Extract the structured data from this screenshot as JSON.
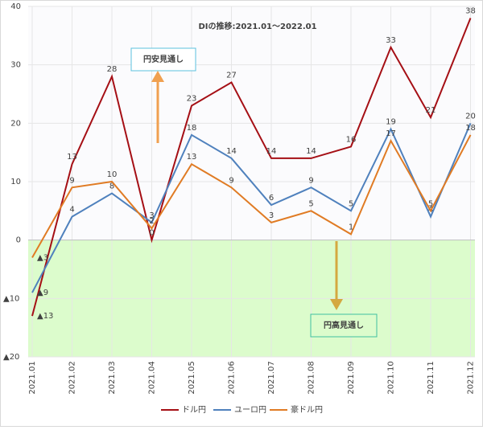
{
  "chart_data": {
    "type": "line",
    "title": "DIの推移:2021.01～2022.01",
    "categories": [
      "2021.01",
      "2021.02",
      "2021.03",
      "2021.04",
      "2021.05",
      "2021.06",
      "2021.07",
      "2021.08",
      "2021.09",
      "2021.10",
      "2021.11",
      "2021.12"
    ],
    "series": [
      {
        "name": "ドル円",
        "color": "#a50f15",
        "values": [
          -13,
          13,
          28,
          0,
          23,
          27,
          14,
          14,
          16,
          33,
          21,
          38
        ],
        "value_labels": [
          "▲13",
          "13",
          "28",
          "0",
          "23",
          "27",
          "14",
          "14",
          "16",
          "33",
          "21",
          "38"
        ]
      },
      {
        "name": "ユーロ円",
        "color": "#4f81bd",
        "values": [
          -9,
          4,
          8,
          3,
          18,
          14,
          6,
          9,
          5,
          19,
          4,
          20
        ],
        "value_labels": [
          "▲9",
          "4",
          "8",
          "3",
          "18",
          "14",
          "6",
          "9",
          "5",
          "19",
          "4",
          "20"
        ]
      },
      {
        "name": "豪ドル円",
        "color": "#e07b24",
        "values": [
          -3,
          9,
          10,
          2,
          13,
          9,
          3,
          5,
          1,
          17,
          5,
          18
        ],
        "value_labels": [
          "▲3",
          "9",
          "10",
          "2",
          "13",
          "9",
          "3",
          "5",
          "1",
          "17",
          "5",
          "18"
        ]
      }
    ],
    "ylim": [
      -20,
      40
    ],
    "yticks": [
      {
        "value": -20,
        "label": "▲20"
      },
      {
        "value": -10,
        "label": "▲10"
      },
      0,
      10,
      20,
      30,
      40
    ],
    "grid": true,
    "legend": "bottom",
    "annotations": [
      "円安見通し",
      "円高見通し"
    ]
  }
}
